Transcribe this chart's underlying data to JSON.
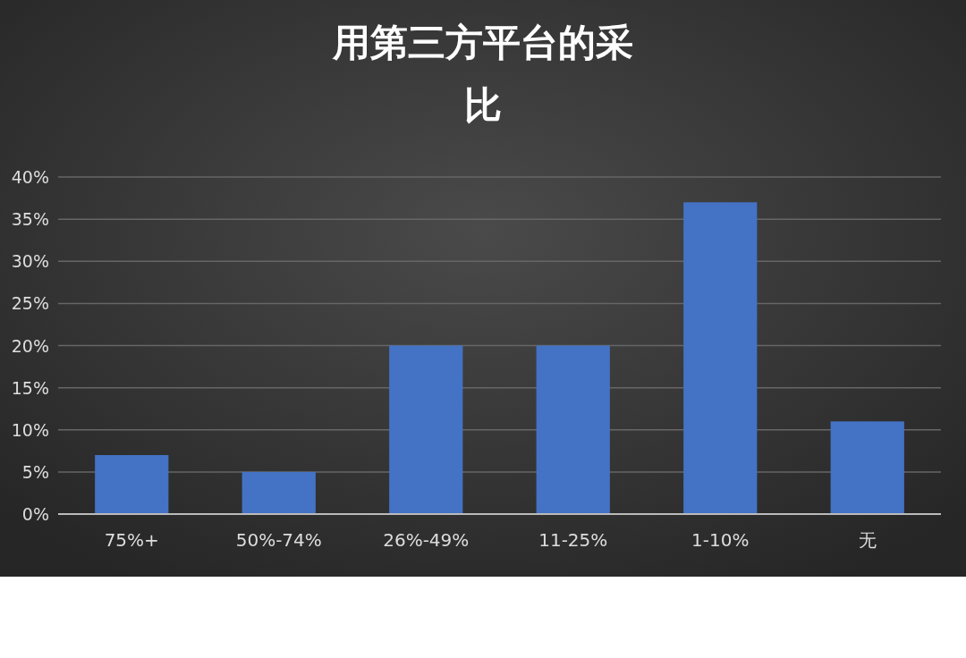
{
  "chart_data": {
    "type": "bar",
    "title": "用第三方平台的采",
    "subtitle": "比",
    "categories": [
      "75%+",
      "50%-74%",
      "26%-49%",
      "11-25%",
      "1-10%",
      "无"
    ],
    "values": [
      7,
      5,
      20,
      20,
      37,
      11
    ],
    "color": "#4472c4",
    "ylim": [
      0,
      40
    ],
    "yticks": [
      {
        "value": 0,
        "label": "0%"
      },
      {
        "value": 5,
        "label": "5%"
      },
      {
        "value": 10,
        "label": "10%"
      },
      {
        "value": 15,
        "label": "15%"
      },
      {
        "value": 20,
        "label": "20%"
      },
      {
        "value": 25,
        "label": "25%"
      },
      {
        "value": 30,
        "label": "30%"
      },
      {
        "value": 35,
        "label": "35%"
      },
      {
        "value": 40,
        "label": "40%"
      }
    ],
    "grid": "y"
  }
}
